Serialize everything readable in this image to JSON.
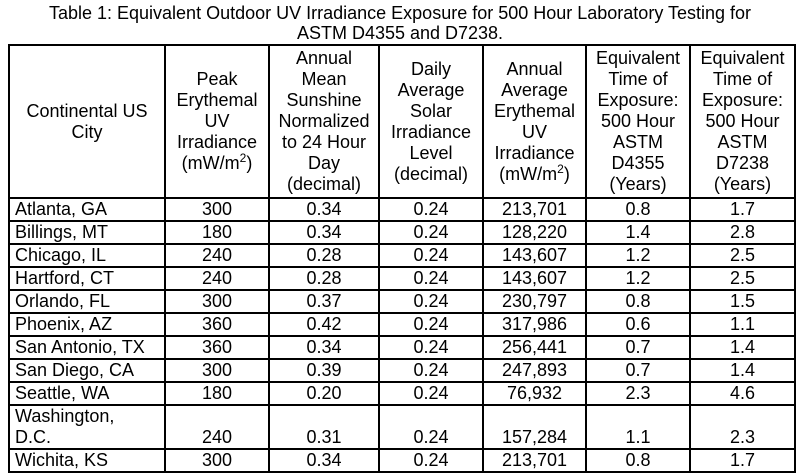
{
  "colors": {
    "background": "#ffffff",
    "text": "#000000",
    "border": "#000000"
  },
  "title": {
    "line1": "Table 1: Equivalent Outdoor UV Irradiance Exposure for 500 Hour Laboratory Testing for",
    "line2": "ASTM D4355 and D7238."
  },
  "table": {
    "columns": [
      {
        "label": "Continental US\nCity"
      },
      {
        "label": "Peak\nErythemal\nUV\nIrradiance",
        "unit_pre": "(mW/m",
        "unit_sup": "2",
        "unit_post": ")"
      },
      {
        "label": "Annual\nMean\nSunshine\nNormalized\nto 24 Hour\nDay\n(decimal)"
      },
      {
        "label": "Daily\nAverage\nSolar\nIrradiance\nLevel\n(decimal)"
      },
      {
        "label": "Annual\nAverage\nErythemal\nUV\nIrradiance",
        "unit_pre": "(mW/m",
        "unit_sup": "2",
        "unit_post": ")"
      },
      {
        "label": "Equivalent\nTime of\nExposure:\n500 Hour\nASTM\nD4355\n(Years)"
      },
      {
        "label": "Equivalent\nTime of\nExposure:\n500 Hour\nASTM\nD7238\n(Years)"
      }
    ],
    "rows": [
      [
        "Atlanta, GA",
        "300",
        "0.34",
        "0.24",
        "213,701",
        "0.8",
        "1.7"
      ],
      [
        "Billings, MT",
        "180",
        "0.34",
        "0.24",
        "128,220",
        "1.4",
        "2.8"
      ],
      [
        "Chicago, IL",
        "240",
        "0.28",
        "0.24",
        "143,607",
        "1.2",
        "2.5"
      ],
      [
        "Hartford, CT",
        "240",
        "0.28",
        "0.24",
        "143,607",
        "1.2",
        "2.5"
      ],
      [
        "Orlando, FL",
        "300",
        "0.37",
        "0.24",
        "230,797",
        "0.8",
        "1.5"
      ],
      [
        "Phoenix, AZ",
        "360",
        "0.42",
        "0.24",
        "317,986",
        "0.6",
        "1.1"
      ],
      [
        "San Antonio, TX",
        "360",
        "0.34",
        "0.24",
        "256,441",
        "0.7",
        "1.4"
      ],
      [
        "San Diego, CA",
        "300",
        "0.39",
        "0.24",
        "247,893",
        "0.7",
        "1.4"
      ],
      [
        "Seattle, WA",
        "180",
        "0.20",
        "0.24",
        "76,932",
        "2.3",
        "4.6"
      ],
      [
        "Washington,\nD.C.",
        "240",
        "0.31",
        "0.24",
        "157,284",
        "1.1",
        "2.3"
      ],
      [
        "Wichita, KS",
        "300",
        "0.34",
        "0.24",
        "213,701",
        "0.8",
        "1.7"
      ]
    ]
  }
}
